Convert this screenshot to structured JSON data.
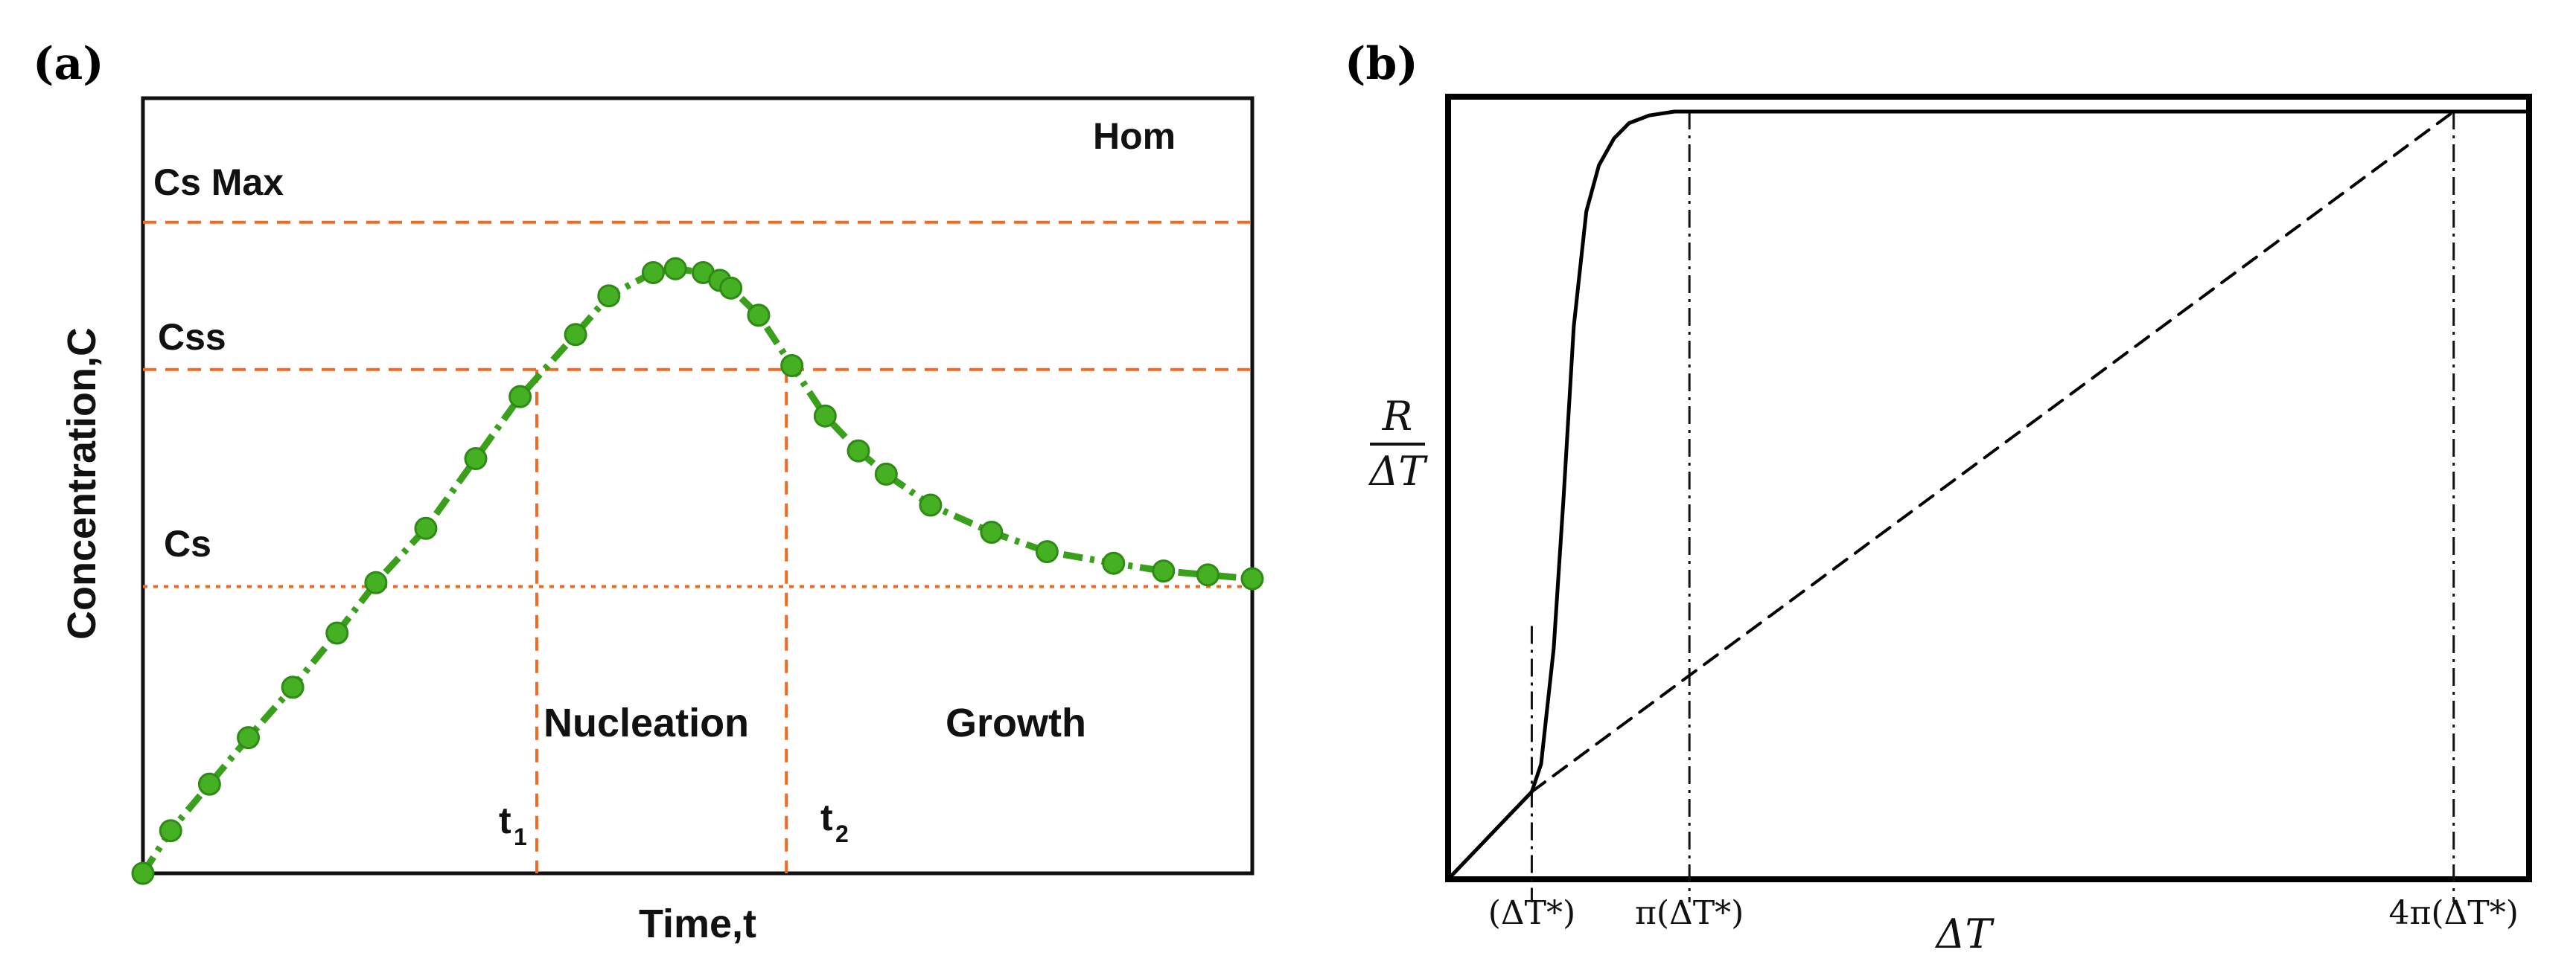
{
  "panels": {
    "a": {
      "label": "(a)"
    },
    "b": {
      "label": "(b)"
    }
  },
  "chart_data": [
    {
      "type": "line",
      "id": "a",
      "title": "",
      "xlabel": "Time,t",
      "ylabel": "Concentration,C",
      "grid": false,
      "xlim": [
        0,
        10
      ],
      "ylim": [
        0,
        10
      ],
      "annotations": {
        "hom": "Hom",
        "nucleation": "Nucleation",
        "growth": "Growth",
        "t1_base": "t",
        "t1_sub": "1",
        "t2_base": "t",
        "t2_sub": "2"
      },
      "reference_lines": [
        {
          "name": "Cs Max",
          "label": "Cs Max",
          "y": 8.4,
          "color": "#f26a22",
          "style": "dashed"
        },
        {
          "name": "Css",
          "label": "Css",
          "y": 6.5,
          "color": "#f26a22",
          "style": "dashed"
        },
        {
          "name": "Cs",
          "label": "Cs",
          "y": 3.7,
          "color": "#f26a22",
          "style": "dotted"
        }
      ],
      "vertical_markers": [
        {
          "name": "t1",
          "x": 3.55,
          "ymax": 6.5,
          "color": "#f26a22",
          "style": "dashed"
        },
        {
          "name": "t2",
          "x": 5.8,
          "ymax": 6.5,
          "color": "#f26a22",
          "style": "dashed"
        }
      ],
      "series": [
        {
          "name": "concentration",
          "color": "#3aa01c",
          "style": "dash-dot with markers",
          "x": [
            0.0,
            0.25,
            0.6,
            0.95,
            1.35,
            1.75,
            2.1,
            2.55,
            3.0,
            3.4,
            3.9,
            4.2,
            4.6,
            4.8,
            5.05,
            5.2,
            5.3,
            5.55,
            5.85,
            6.15,
            6.45,
            6.7,
            7.1,
            7.65,
            8.15,
            8.75,
            9.2,
            9.6,
            10.0
          ],
          "y": [
            0.0,
            0.55,
            1.15,
            1.75,
            2.4,
            3.1,
            3.75,
            4.45,
            5.35,
            6.15,
            6.95,
            7.45,
            7.75,
            7.8,
            7.75,
            7.65,
            7.55,
            7.2,
            6.55,
            5.9,
            5.45,
            5.15,
            4.75,
            4.4,
            4.15,
            4.0,
            3.9,
            3.85,
            3.8
          ]
        }
      ]
    },
    {
      "type": "line",
      "id": "b",
      "title": "",
      "xlabel": "ΔT",
      "ylabel": "R/ΔT",
      "ylabel_numerator": "R",
      "ylabel_denominator": "ΔT",
      "grid": false,
      "xlim": [
        0,
        4.3
      ],
      "ylim": [
        0,
        1.0
      ],
      "x_ticks": [
        {
          "value": 0.333,
          "label": "(ΔT*)"
        },
        {
          "value": 0.96,
          "label": "π(ΔT*)"
        },
        {
          "value": 4.0,
          "label": "4π(ΔT*)"
        }
      ],
      "vertical_markers": [
        {
          "name": "dT-star",
          "x": 0.333,
          "y_from": -0.03,
          "y_to": 0.33,
          "style": "dash-dot"
        },
        {
          "name": "pi-dT-star",
          "x": 0.96,
          "y_from": -0.03,
          "y_to": 1.0,
          "style": "dash-dot"
        },
        {
          "name": "4pi-dT-star",
          "x": 4.0,
          "y_from": -0.03,
          "y_to": 1.0,
          "style": "dash-dot"
        }
      ],
      "series": [
        {
          "name": "solid-curve",
          "style": "solid",
          "color": "#000000",
          "x": [
            0.0,
            0.333,
            0.37,
            0.42,
            0.46,
            0.5,
            0.55,
            0.6,
            0.66,
            0.72,
            0.8,
            0.9,
            0.96,
            1.1,
            1.5,
            2.0,
            3.0,
            4.0,
            4.3
          ],
          "y": [
            0.0,
            0.114,
            0.15,
            0.3,
            0.5,
            0.72,
            0.87,
            0.93,
            0.965,
            0.985,
            0.995,
            1.0,
            1.0,
            1.0,
            1.0,
            1.0,
            1.0,
            1.0,
            1.0
          ]
        },
        {
          "name": "dashed-line",
          "style": "dashed",
          "color": "#000000",
          "x": [
            0.333,
            4.0
          ],
          "y": [
            0.114,
            1.0
          ]
        }
      ]
    }
  ]
}
